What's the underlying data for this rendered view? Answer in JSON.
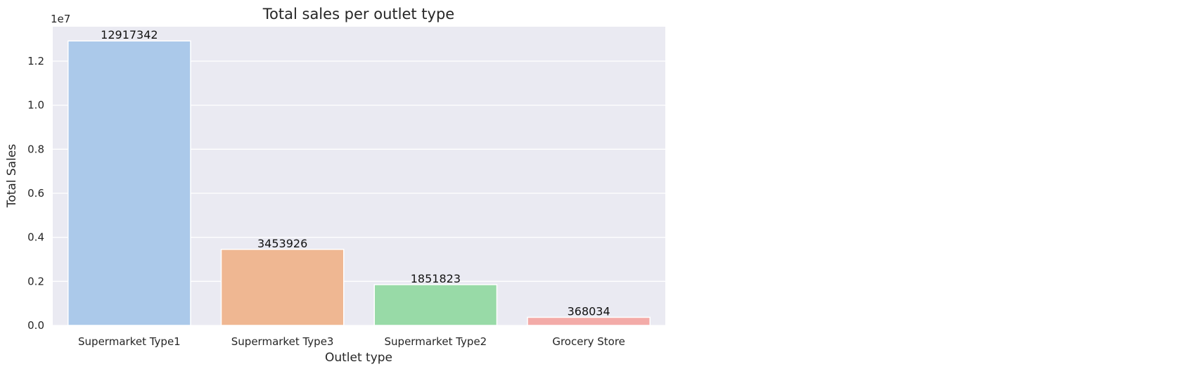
{
  "chart_data": {
    "type": "bar",
    "title": "Total sales per outlet type",
    "xlabel": "Outlet type",
    "ylabel": "Total Sales",
    "y_offset_label": "1e7",
    "categories": [
      "Supermarket Type1",
      "Supermarket Type3",
      "Supermarket Type2",
      "Grocery Store"
    ],
    "values": [
      12917342,
      3453926,
      1851823,
      368034
    ],
    "bar_labels": [
      "12917342",
      "3453926",
      "1851823",
      "368034"
    ],
    "colors": [
      "#abc9ea",
      "#efb792",
      "#98daa7",
      "#f3aba8"
    ],
    "ylim": [
      0,
      13563209
    ],
    "yticks": [
      0,
      2000000,
      4000000,
      6000000,
      8000000,
      10000000,
      12000000
    ],
    "ytick_labels": [
      "0.0",
      "0.2",
      "0.4",
      "0.6",
      "0.8",
      "1.0",
      "1.2"
    ],
    "grid": true,
    "style": {
      "plot_background": "#eaeaf2",
      "grid_color": "#ffffff",
      "bar_edge_color": "#ffffff"
    }
  }
}
